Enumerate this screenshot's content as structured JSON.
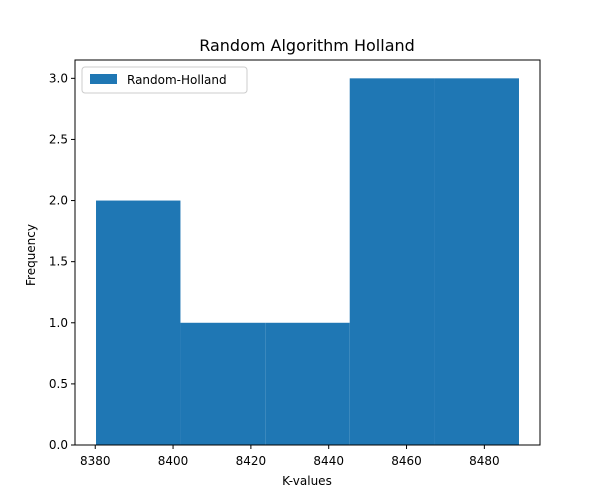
{
  "chart_data": {
    "type": "bar",
    "title": "Random Algorithm Holland",
    "xlabel": "K-values",
    "ylabel": "Frequency",
    "series": [
      {
        "name": "Random-Holland",
        "bins": [
          {
            "x0": 8380.2,
            "x1": 8401.9,
            "value": 2
          },
          {
            "x0": 8401.9,
            "x1": 8423.7,
            "value": 1
          },
          {
            "x0": 8423.7,
            "x1": 8445.4,
            "value": 1
          },
          {
            "x0": 8445.4,
            "x1": 8467.2,
            "value": 3
          },
          {
            "x0": 8467.2,
            "x1": 8488.9,
            "value": 3
          }
        ]
      }
    ],
    "xlim": [
      8374.8,
      8494.3
    ],
    "ylim": [
      0,
      3.15
    ],
    "xticks": [
      8380,
      8400,
      8420,
      8440,
      8460,
      8480
    ],
    "yticks": [
      0.0,
      0.5,
      1.0,
      1.5,
      2.0,
      2.5,
      3.0
    ],
    "xtick_labels": [
      "8380",
      "8400",
      "8420",
      "8440",
      "8460",
      "8480"
    ],
    "ytick_labels": [
      "0.0",
      "0.5",
      "1.0",
      "1.5",
      "2.0",
      "2.5",
      "3.0"
    ],
    "grid": false,
    "legend_position": "top-left"
  },
  "colors": {
    "bar": "#1f77b4",
    "axes": "#000000"
  }
}
